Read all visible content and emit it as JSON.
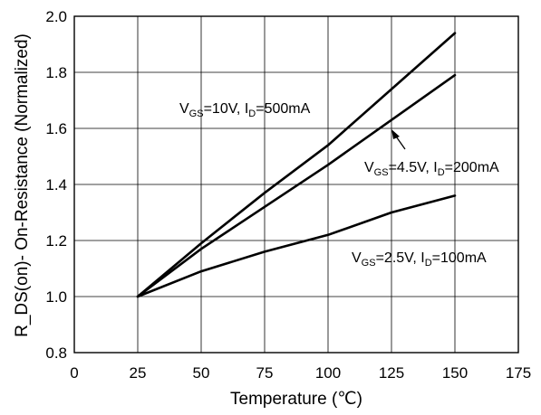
{
  "chart_data": {
    "type": "line",
    "title": "",
    "xlabel": "Temperature (℃)",
    "ylabel": "R_DS(on)- On-Resistance (Normalized)",
    "xlim": [
      0,
      175
    ],
    "ylim": [
      0.8,
      2.0
    ],
    "xticks": [
      "0",
      "25",
      "50",
      "75",
      "100",
      "125",
      "150",
      "175"
    ],
    "yticks": [
      "0.8",
      "1.0",
      "1.2",
      "1.4",
      "1.6",
      "1.8",
      "2.0"
    ],
    "grid": true,
    "line_color": "#000000",
    "series": [
      {
        "name": "VGS=10V, ID=500mA",
        "label_parts": {
          "a": "V",
          "a_sub": "GS",
          "b": "=10V, I",
          "b_sub": "D",
          "c": "=500mA"
        },
        "x": [
          25,
          50,
          75,
          100,
          125,
          150
        ],
        "y": [
          1.0,
          1.19,
          1.37,
          1.54,
          1.74,
          1.94
        ]
      },
      {
        "name": "VGS=4.5V, ID=200mA",
        "label_parts": {
          "a": "V",
          "a_sub": "GS",
          "b": "=4.5V, I",
          "b_sub": "D",
          "c": "=200mA"
        },
        "x": [
          25,
          50,
          75,
          100,
          125,
          150
        ],
        "y": [
          1.0,
          1.17,
          1.32,
          1.47,
          1.63,
          1.79
        ]
      },
      {
        "name": "VGS=2.5V, ID=100mA",
        "label_parts": {
          "a": "V",
          "a_sub": "GS",
          "b": "=2.5V, I",
          "b_sub": "D",
          "c": "=100mA"
        },
        "x": [
          25,
          50,
          75,
          100,
          125,
          150
        ],
        "y": [
          1.0,
          1.09,
          1.16,
          1.22,
          1.3,
          1.36
        ]
      }
    ]
  }
}
